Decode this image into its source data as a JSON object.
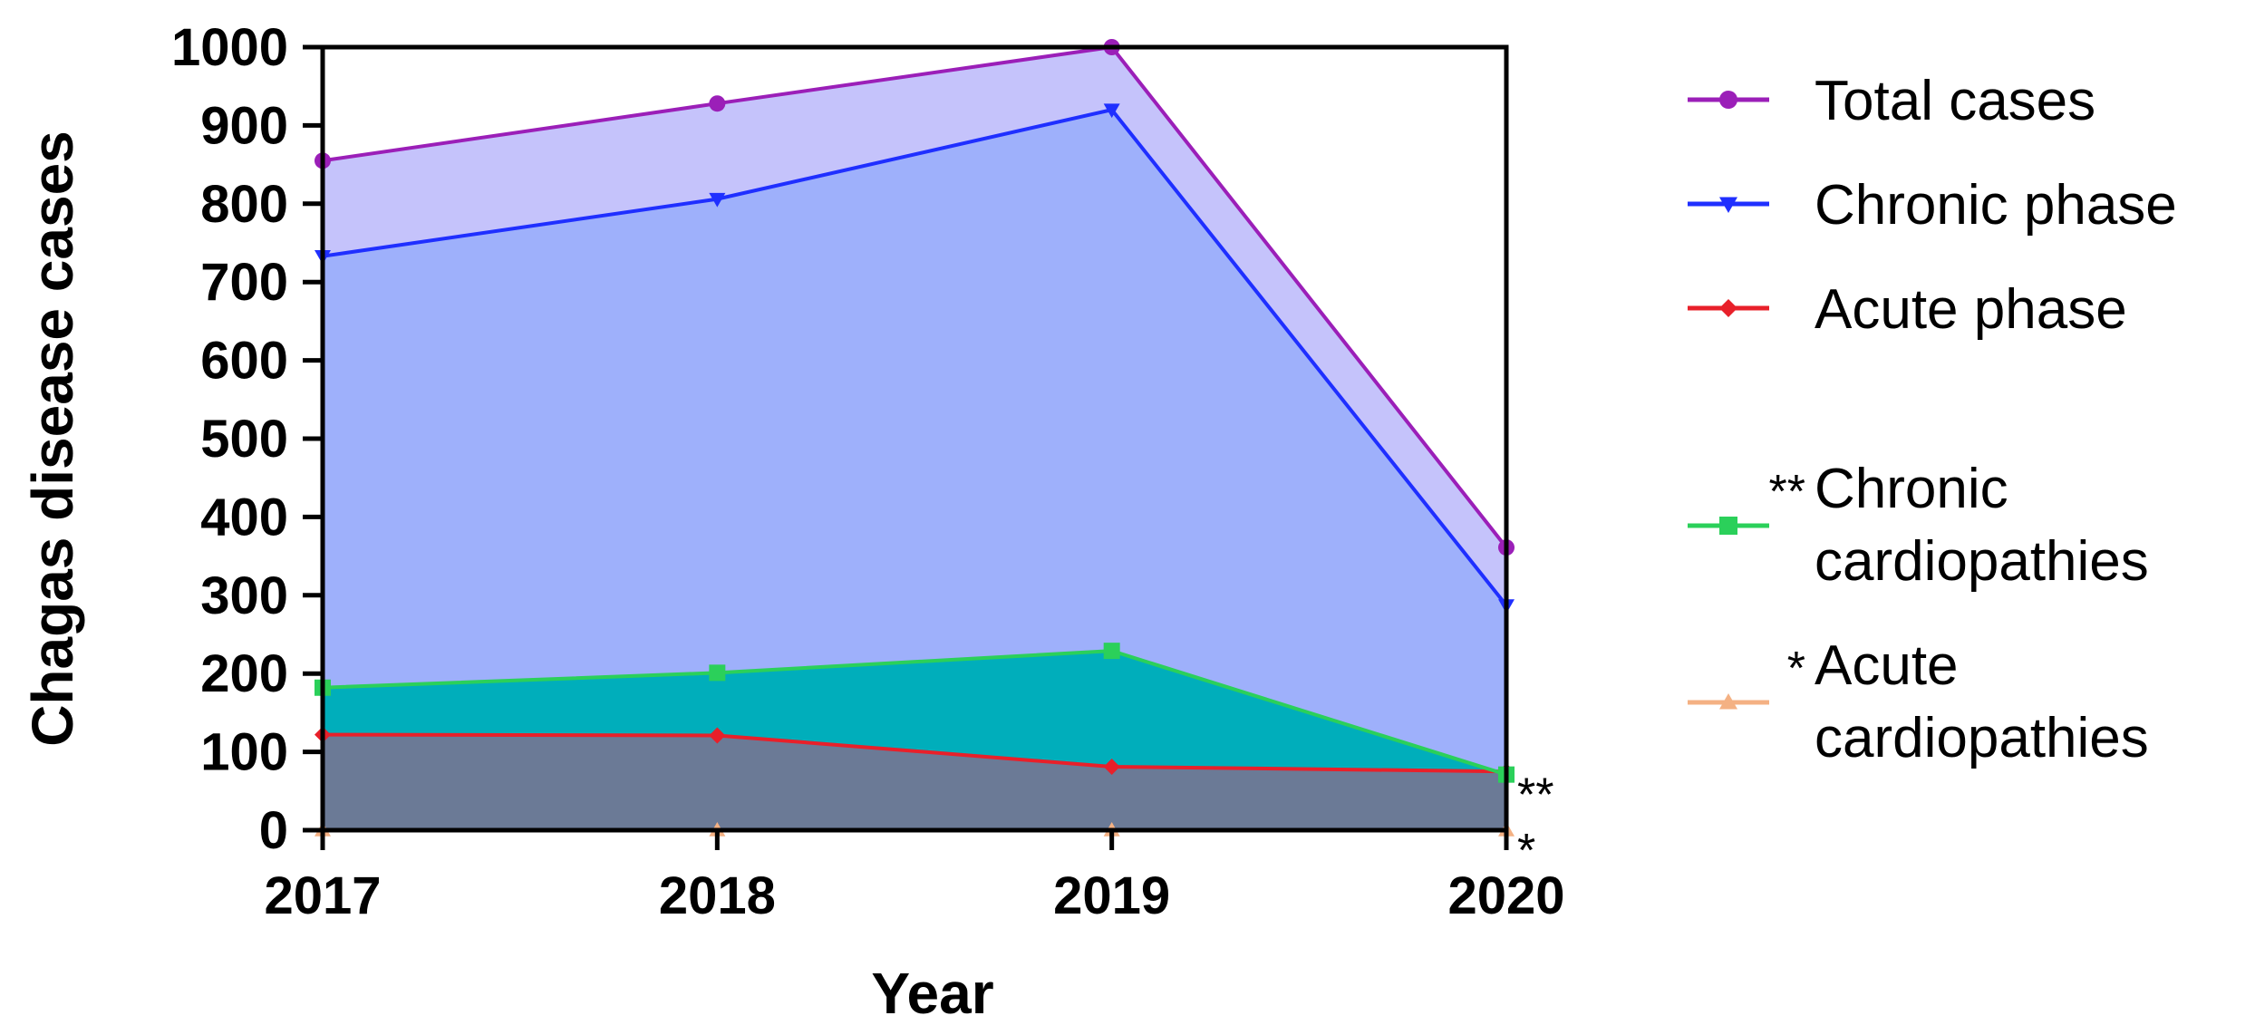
{
  "chart_data": {
    "type": "area",
    "xlabel": "Year",
    "ylabel": "Chagas disease cases",
    "categories": [
      "2017",
      "2018",
      "2019",
      "2020"
    ],
    "ylim": [
      0,
      1000
    ],
    "yticks": [
      "0",
      "100",
      "200",
      "300",
      "400",
      "500",
      "600",
      "700",
      "800",
      "900",
      "1000"
    ],
    "grid": false,
    "legend_position": "right",
    "series": [
      {
        "name": "Total cases",
        "values": [
          855,
          928,
          1000,
          361
        ],
        "line_color": "#9b1fb8",
        "fill_color": "#c5c3fb",
        "marker": "circle",
        "significance": ""
      },
      {
        "name": "Chronic phase",
        "values": [
          733,
          806,
          920,
          287
        ],
        "line_color": "#1f2fff",
        "fill_color": "#9eb0fb",
        "marker": "triangle-down",
        "significance": ""
      },
      {
        "name": "Acute phase",
        "values": [
          122,
          121,
          81,
          75
        ],
        "line_color": "#e8202a",
        "fill_color": "#6b7a96",
        "marker": "diamond",
        "significance": ""
      },
      {
        "name": "Chronic cardiopathies",
        "values": [
          182,
          201,
          229,
          71
        ],
        "line_color": "#2bd05a",
        "fill_color": "#00aebb",
        "marker": "square",
        "significance": "**"
      },
      {
        "name": "Acute cardiopathies",
        "values": [
          0,
          0,
          0,
          0
        ],
        "line_color": "#f4b183",
        "fill_color": "#f4b183",
        "marker": "triangle-up",
        "significance": "*"
      }
    ],
    "annotations": [
      {
        "series": "Chronic cardiopathies",
        "text": "**",
        "at": "2020"
      },
      {
        "series": "Acute cardiopathies",
        "text": "*",
        "at": "2020"
      }
    ]
  }
}
